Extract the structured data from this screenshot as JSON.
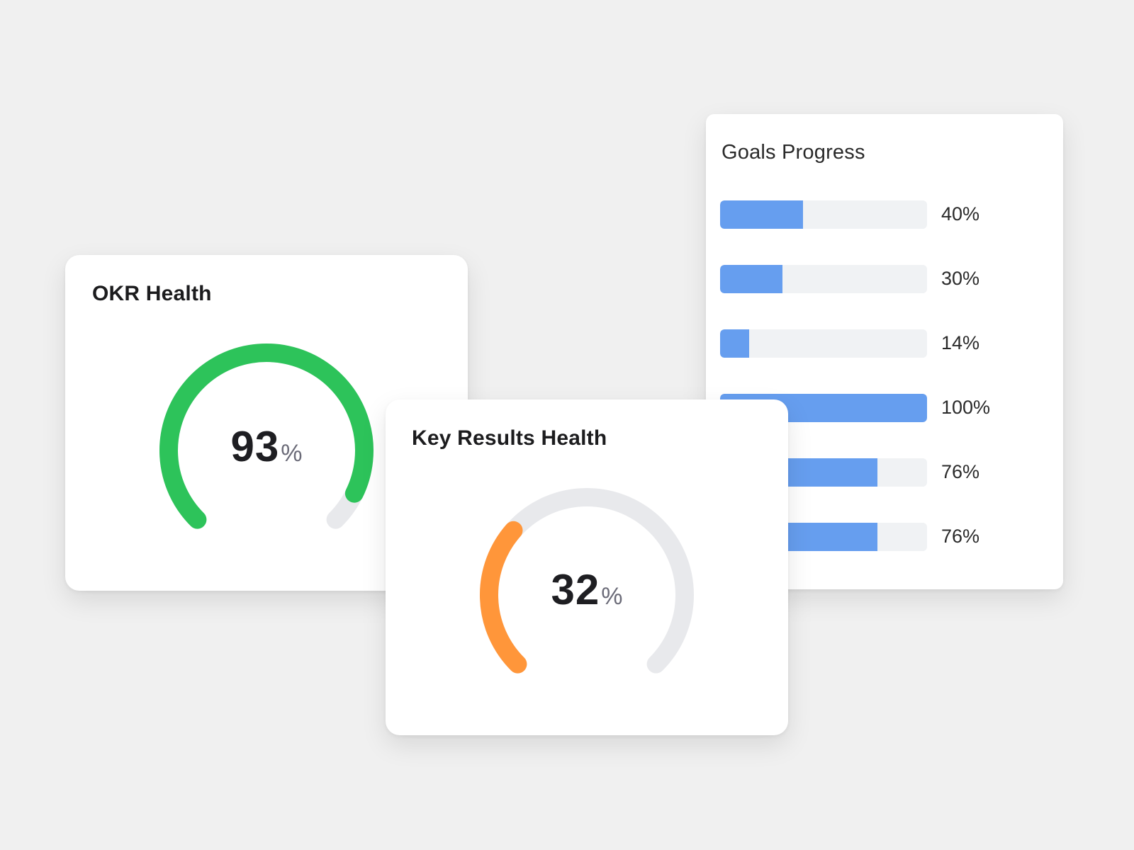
{
  "okr_health": {
    "title": "OKR Health",
    "value": 93,
    "value_text": "93",
    "unit": "%",
    "color": "#2dc35a",
    "track_color": "#e8e9ec"
  },
  "key_results_health": {
    "title": "Key Results Health",
    "value": 32,
    "value_text": "32",
    "unit": "%",
    "color": "#ff963a",
    "track_color": "#e8e9ec"
  },
  "goals_progress": {
    "title": "Goals Progress",
    "bar_color": "#669eef",
    "track_color": "#f0f2f4",
    "items": [
      {
        "value": 40,
        "label": "40%"
      },
      {
        "value": 30,
        "label": "30%"
      },
      {
        "value": 14,
        "label": "14%"
      },
      {
        "value": 100,
        "label": "100%"
      },
      {
        "value": 76,
        "label": "76%"
      },
      {
        "value": 76,
        "label": "76%"
      }
    ]
  }
}
